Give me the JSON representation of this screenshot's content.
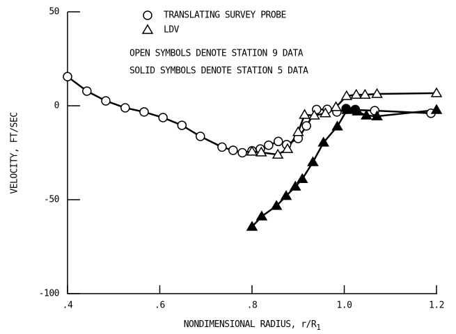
{
  "chart_data": {
    "type": "line",
    "xlabel": "NONDIMENSIONAL RADIUS, r/R",
    "xlabel_subscript": "1",
    "ylabel": "VELOCITY, FT/SEC",
    "annotations": [
      "OPEN SYMBOLS DENOTE STATION 9 DATA",
      "SOLID SYMBOLS DENOTE STATION 5 DATA"
    ],
    "xlim": [
      0.4,
      1.2
    ],
    "ylim": [
      -100,
      50
    ],
    "xticks": [
      {
        "value": 0.4,
        "label": ".4"
      },
      {
        "value": 0.6,
        "label": ".6"
      },
      {
        "value": 0.8,
        "label": ".8"
      },
      {
        "value": 1.0,
        "label": "1.0"
      },
      {
        "value": 1.2,
        "label": "1.2"
      }
    ],
    "yticks": [
      -100,
      -50,
      0,
      50
    ],
    "grid": false,
    "legend": "top",
    "series": [
      {
        "name": "TRANSLATING SURVEY PROBE",
        "marker": "circle",
        "filled": false,
        "color": "#000000",
        "x": [
          0.4,
          0.442,
          0.483,
          0.525,
          0.566,
          0.607,
          0.648,
          0.688,
          0.735,
          0.759,
          0.779,
          0.8,
          0.818,
          0.836,
          0.857,
          0.875,
          0.9,
          0.918,
          0.94,
          0.963,
          0.984,
          1.004,
          1.023,
          1.066,
          1.188
        ],
        "values": [
          15.5,
          7.8,
          2.6,
          -1.1,
          -3.3,
          -6.3,
          -10.4,
          -16.3,
          -22,
          -23.7,
          -25,
          -24,
          -23,
          -21,
          -19,
          -20.7,
          -17.4,
          -10.7,
          -2,
          -1.9,
          -3.3,
          -1.9,
          -2.2,
          -2.6,
          -4
        ]
      },
      {
        "name": "LDV",
        "marker": "triangle",
        "filled": false,
        "color": "#000000",
        "x": [
          0.8,
          0.82,
          0.856,
          0.877,
          0.9,
          0.914,
          0.935,
          0.959,
          0.982,
          1.005,
          1.026,
          1.045,
          1.071,
          1.2
        ],
        "values": [
          -24.4,
          -24.8,
          -26,
          -23,
          -14,
          -4.8,
          -5.2,
          -4,
          -0.7,
          5.2,
          5.9,
          5.9,
          6.3,
          6.7
        ]
      },
      {
        "marker": "triangle",
        "filled": true,
        "color": "#000000",
        "x": [
          0.8,
          0.821,
          0.853,
          0.874,
          0.894,
          0.909,
          0.932,
          0.955,
          0.985,
          1.006,
          1.029,
          1.048,
          1.071,
          1.2
        ],
        "values": [
          -64.4,
          -58.9,
          -53.3,
          -48,
          -43,
          -39,
          -30,
          -19.6,
          -11,
          -2.2,
          -3,
          -5.2,
          -5.6,
          -2.2
        ]
      },
      {
        "marker": "circle",
        "filled": true,
        "color": "#000000",
        "x": [
          1.004,
          1.024
        ],
        "values": [
          -1.5,
          -2
        ]
      }
    ]
  }
}
